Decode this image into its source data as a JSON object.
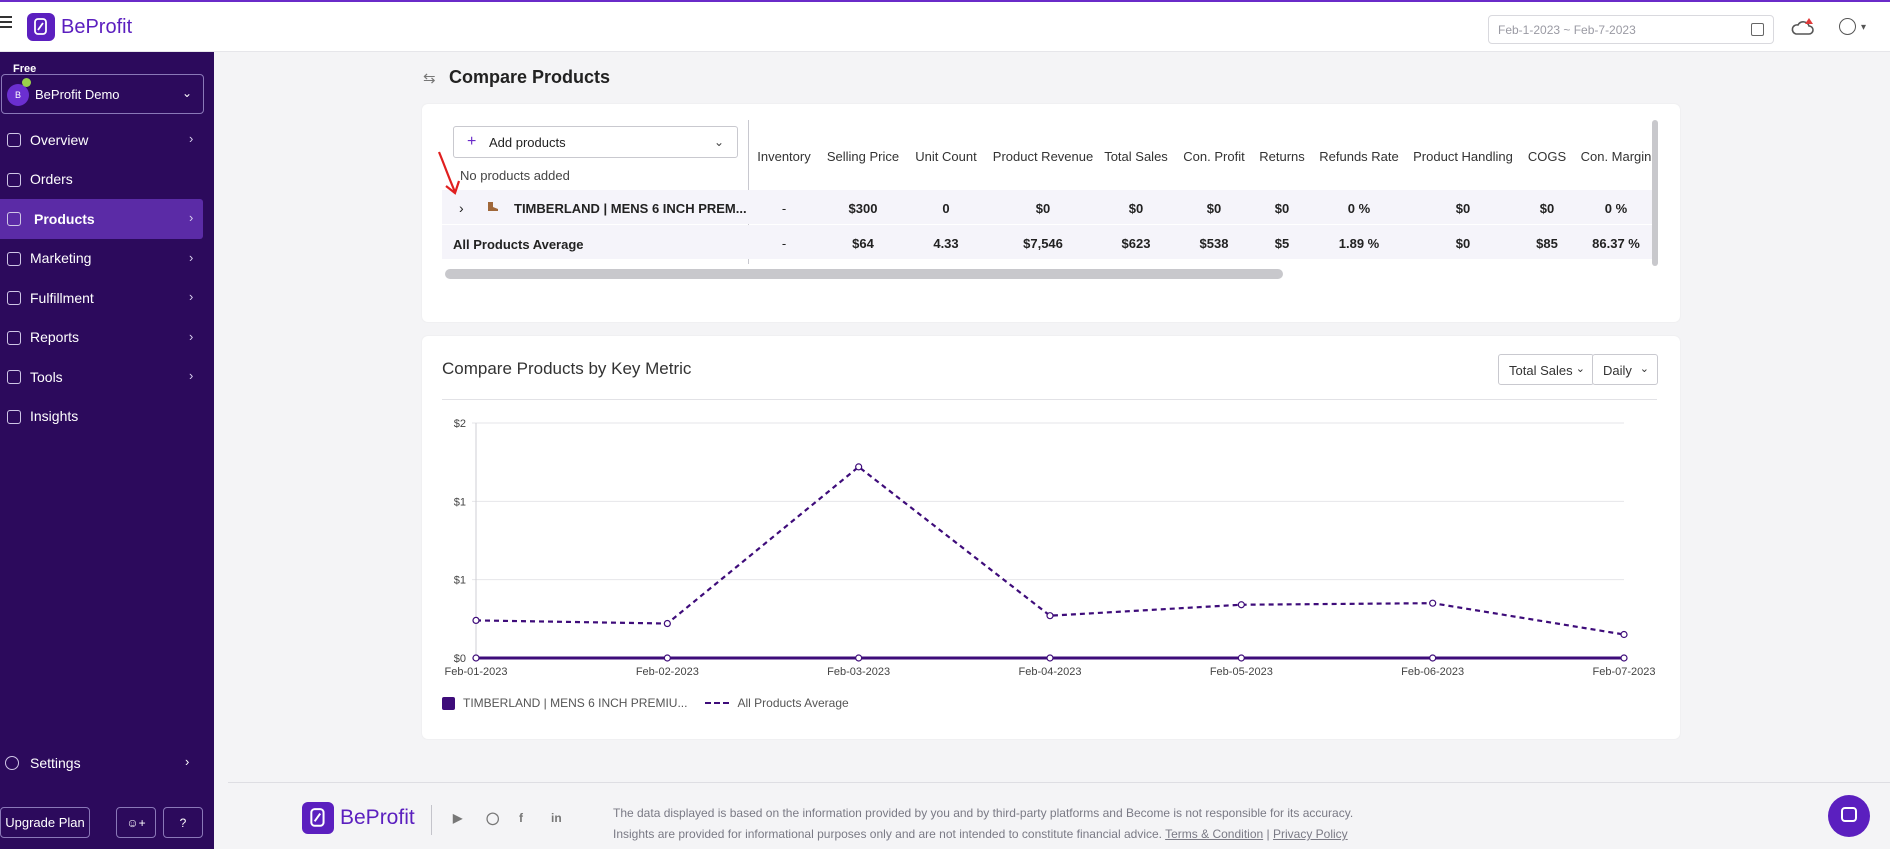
{
  "app": {
    "brand": "BeProfit"
  },
  "topbar": {
    "date_range": "Feb-1-2023 ~ Feb-7-2023"
  },
  "sidebar": {
    "plan": "Free",
    "store_initial": "B",
    "store_name": "BeProfit Demo",
    "items": [
      {
        "label": "Overview",
        "icon": "eye-icon",
        "has_arrow": true
      },
      {
        "label": "Orders",
        "icon": "cart-icon",
        "has_arrow": false
      },
      {
        "label": "Products",
        "icon": "bag-icon",
        "has_arrow": true,
        "active": true
      },
      {
        "label": "Marketing",
        "icon": "megaphone-icon",
        "has_arrow": true
      },
      {
        "label": "Fulfillment",
        "icon": "truck-icon",
        "has_arrow": true
      },
      {
        "label": "Reports",
        "icon": "bar-chart-icon",
        "has_arrow": true
      },
      {
        "label": "Tools",
        "icon": "wrench-icon",
        "has_arrow": true
      },
      {
        "label": "Insights",
        "icon": "lightbulb-icon",
        "has_arrow": false
      }
    ],
    "settings_label": "Settings",
    "upgrade_label": "Upgrade Plan"
  },
  "compare": {
    "title": "Compare Products",
    "add_label": "Add products",
    "no_products": "No products added",
    "columns": [
      "Inventory",
      "Selling Price",
      "Unit Count",
      "Product Revenue",
      "Total Sales",
      "Con. Profit",
      "Returns",
      "Refunds Rate",
      "Product Handling",
      "COGS",
      "Con. Margin"
    ],
    "rows": [
      {
        "name": "TIMBERLAND | MENS 6 INCH PREM...",
        "values": [
          "-",
          "$300",
          "0",
          "$0",
          "$0",
          "$0",
          "$0",
          "0 %",
          "$0",
          "$0",
          "0 %"
        ]
      },
      {
        "name": "All Products Average",
        "values": [
          "-",
          "$64",
          "4.33",
          "$7,546",
          "$623",
          "$538",
          "$5",
          "1.89 %",
          "$0",
          "$85",
          "86.37 %"
        ]
      }
    ]
  },
  "chart_section": {
    "title": "Compare Products by Key Metric",
    "metric_select": "Total Sales",
    "period_select": "Daily"
  },
  "chart_data": {
    "type": "line",
    "x": [
      "Feb-01-2023",
      "Feb-02-2023",
      "Feb-03-2023",
      "Feb-04-2023",
      "Feb-05-2023",
      "Feb-06-2023",
      "Feb-07-2023"
    ],
    "y_tick_labels": [
      "$0",
      "$1",
      "$1",
      "$2"
    ],
    "ylim": [
      0,
      1.5
    ],
    "series": [
      {
        "name": "TIMBERLAND | MENS 6 INCH PREMIU...",
        "values": [
          0,
          0,
          0,
          0,
          0,
          0,
          0
        ],
        "style": "solid",
        "color": "#3e0c7a"
      },
      {
        "name": "All Products Average",
        "values": [
          0.24,
          0.22,
          1.22,
          0.27,
          0.34,
          0.35,
          0.15
        ],
        "style": "dashed",
        "color": "#3e0c7a"
      }
    ],
    "grid": true,
    "legend": "bottom-left"
  },
  "footer": {
    "line1": "The data displayed is based on the information provided by you and by third-party platforms and Become is not responsible for its accuracy.",
    "line2": "Insights are provided for informational purposes only and are not intended to constitute financial advice.",
    "terms": "Terms & Condition",
    "sep": "|",
    "privacy": "Privacy Policy",
    "social": [
      "youtube-icon",
      "instagram-icon",
      "facebook-icon",
      "linkedin-icon"
    ]
  },
  "colors": {
    "brand": "#5b1fbf",
    "sidebar": "#2c0a5c",
    "active": "#5b2ba6"
  }
}
